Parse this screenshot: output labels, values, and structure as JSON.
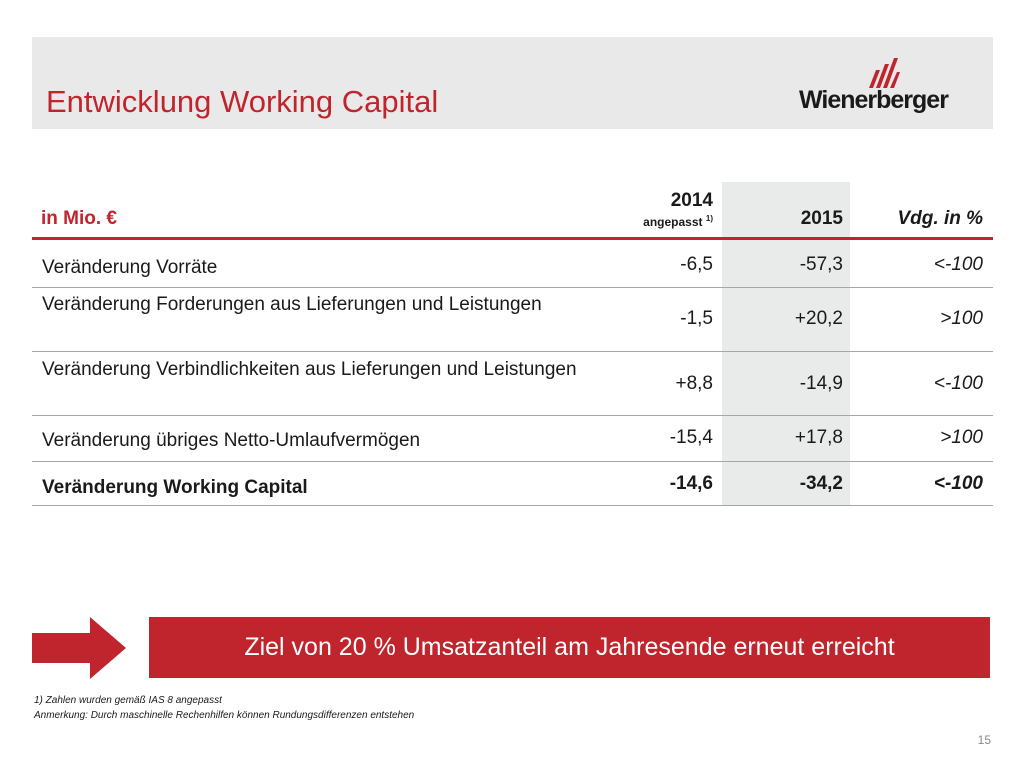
{
  "header": {
    "title": "Entwicklung Working Capital",
    "logo_text": "Wienerberger",
    "logo_mark": "wienerberger-roof-icon"
  },
  "table": {
    "unit_label": "in Mio. €",
    "columns": {
      "c2014": "2014",
      "c2014_note": "angepasst",
      "c2014_note_ref": "1)",
      "c2015": "2015",
      "vdg": "Vdg. in %"
    },
    "rows": [
      {
        "label": "Veränderung Vorräte",
        "v2014": "-6,5",
        "v2015": "-57,3",
        "vdg": "<-100"
      },
      {
        "label": "Veränderung Forderungen aus Lieferungen und Leistungen",
        "v2014": "-1,5",
        "v2015": "+20,2",
        "vdg": ">100"
      },
      {
        "label": "Veränderung Verbindlichkeiten aus Lieferungen und Leistungen",
        "v2014": "+8,8",
        "v2015": "-14,9",
        "vdg": "<-100"
      },
      {
        "label": "Veränderung übriges Netto-Umlaufvermögen",
        "v2014": "-15,4",
        "v2015": "+17,8",
        "vdg": ">100"
      },
      {
        "label": "Veränderung Working Capital",
        "v2014": "-14,6",
        "v2015": "-34,2",
        "vdg": "<-100",
        "total": true
      }
    ]
  },
  "banner": {
    "text": "Ziel von 20 % Umsatzanteil am Jahresende erneut erreicht"
  },
  "footnotes": [
    "1) Zahlen wurden gemäß IAS 8 angepasst",
    "Anmerkung: Durch maschinelle Rechenhilfen können Rundungsdifferenzen entstehen"
  ],
  "page_number": "15",
  "colors": {
    "brand_red": "#c0252d",
    "header_gray": "#e9e9e9",
    "column_highlight": "#e9ebeb"
  }
}
